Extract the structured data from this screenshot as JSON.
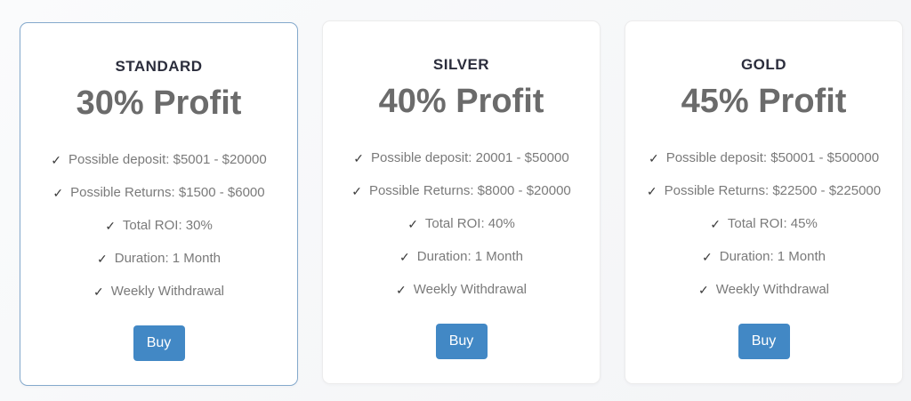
{
  "colors": {
    "accent_border": "#84a9cc",
    "button_bg": "#4288c5",
    "button_text": "#ffffff",
    "title_text": "#2b2d3c",
    "profit_text": "#6b6b6b",
    "feature_text": "#7a7a7a",
    "check_color": "#3b3b3b"
  },
  "icons": {
    "check": "✓"
  },
  "plans": [
    {
      "name": "STANDARD",
      "profit": "30% Profit",
      "featured": true,
      "features": [
        "Possible deposit: $5001 - $20000",
        "Possible Returns: $1500 - $6000",
        "Total ROI: 30%",
        "Duration: 1 Month",
        "Weekly Withdrawal"
      ],
      "buy_label": "Buy"
    },
    {
      "name": "SILVER",
      "profit": "40% Profit",
      "featured": false,
      "features": [
        "Possible deposit: 20001 - $50000",
        "Possible Returns: $8000 - $20000",
        "Total ROI: 40%",
        "Duration: 1 Month",
        "Weekly Withdrawal"
      ],
      "buy_label": "Buy"
    },
    {
      "name": "GOLD",
      "profit": "45% Profit",
      "featured": false,
      "features": [
        "Possible deposit: $50001 - $500000",
        "Possible Returns: $22500 - $225000",
        "Total ROI: 45%",
        "Duration: 1 Month",
        "Weekly Withdrawal"
      ],
      "buy_label": "Buy"
    }
  ]
}
